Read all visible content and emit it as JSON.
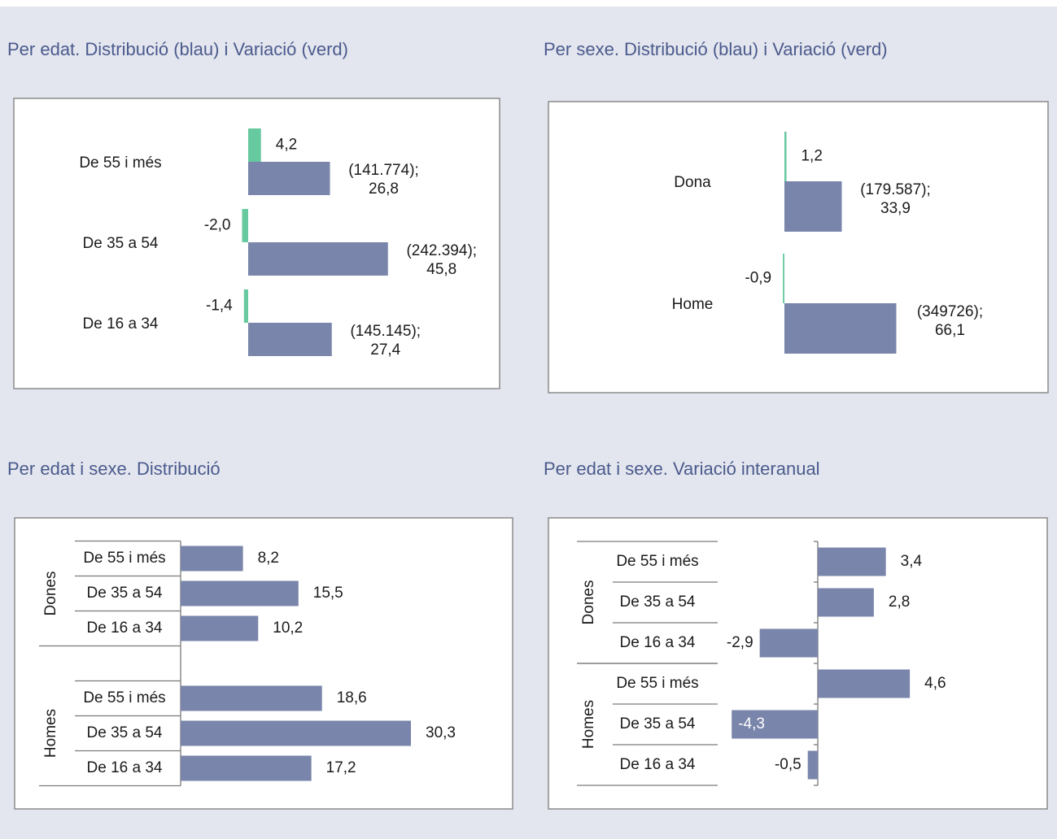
{
  "chart_data": [
    {
      "type": "bar",
      "orientation": "horizontal",
      "title": "Per edat. Distribució (blau) i Variació (verd)",
      "categories": [
        "De 55 i més",
        "De 35 a 54",
        "De 16 a 34"
      ],
      "series": [
        {
          "name": "Variació",
          "color": "#66c9a0",
          "values": [
            4.2,
            -2.0,
            -1.4
          ],
          "value_labels": [
            "4,2",
            "-2,0",
            "-1,4"
          ]
        },
        {
          "name": "Distribució",
          "color": "#7985aa",
          "values": [
            26.8,
            45.8,
            27.4
          ],
          "value_labels": [
            [
              "(141.774);",
              "26,8"
            ],
            [
              "(242.394);",
              "45,8"
            ],
            [
              "(145.145);",
              "27,4"
            ]
          ]
        }
      ]
    },
    {
      "type": "bar",
      "orientation": "horizontal",
      "title": "Per sexe. Distribució (blau) i Variació (verd)",
      "categories": [
        "Dona",
        "Home"
      ],
      "series": [
        {
          "name": "Variació",
          "color": "#66c9a0",
          "values": [
            1.2,
            -0.9
          ],
          "value_labels": [
            "1,2",
            "-0,9"
          ]
        },
        {
          "name": "Distribució",
          "color": "#7985aa",
          "values": [
            33.9,
            66.1
          ],
          "value_labels": [
            [
              "(179.587);",
              "33,9"
            ],
            [
              "(349726);",
              "66,1"
            ]
          ]
        }
      ]
    },
    {
      "type": "bar",
      "orientation": "horizontal",
      "title": "Per edat i sexe. Distribució",
      "groups": [
        "Dones",
        "Homes"
      ],
      "categories": [
        "De 55 i més",
        "De 35 a 54",
        "De 16 a 34",
        "De 55 i més",
        "De 35 a 54",
        "De 16 a 34"
      ],
      "color": "#7985aa",
      "values": [
        8.2,
        15.5,
        10.2,
        18.6,
        30.3,
        17.2
      ],
      "value_labels": [
        "8,2",
        "15,5",
        "10,2",
        "18,6",
        "30,3",
        "17,2"
      ]
    },
    {
      "type": "bar",
      "orientation": "horizontal",
      "title": "Per edat i sexe. Variació interanual",
      "groups": [
        "Dones",
        "Homes"
      ],
      "categories": [
        "De 55 i més",
        "De 35 a 54",
        "De 16 a 34",
        "De 55 i més",
        "De 35 a 54",
        "De 16 a 34"
      ],
      "color": "#7985aa",
      "values": [
        3.4,
        2.8,
        -2.9,
        4.6,
        -4.3,
        -0.5
      ],
      "value_labels": [
        "3,4",
        "2,8",
        "-2,9",
        "4,6",
        "-4,3",
        "-0,5"
      ]
    }
  ]
}
